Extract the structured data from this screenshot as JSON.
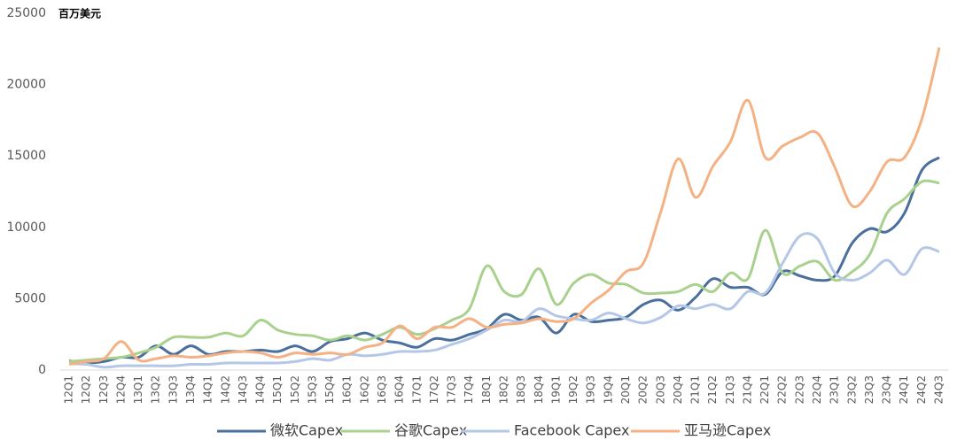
{
  "chart_data": {
    "type": "line",
    "y_unit_label": "百万美元",
    "categories": [
      "12Q1",
      "12Q2",
      "12Q3",
      "12Q4",
      "13Q1",
      "13Q2",
      "13Q3",
      "13Q4",
      "14Q1",
      "14Q2",
      "14Q3",
      "14Q4",
      "15Q1",
      "15Q2",
      "15Q3",
      "15Q4",
      "16Q1",
      "16Q2",
      "16Q3",
      "16Q4",
      "17Q1",
      "17Q2",
      "17Q3",
      "17Q4",
      "18Q1",
      "18Q2",
      "18Q3",
      "18Q4",
      "19Q1",
      "19Q2",
      "19Q3",
      "19Q4",
      "20Q1",
      "20Q2",
      "20Q3",
      "20Q4",
      "21Q1",
      "21Q2",
      "21Q3",
      "21Q4",
      "22Q1",
      "22Q2",
      "22Q3",
      "22Q4",
      "23Q1",
      "23Q2",
      "23Q3",
      "23Q4",
      "24Q1",
      "24Q2",
      "24Q3"
    ],
    "series": [
      {
        "name": "微软Capex",
        "color": "#4a6f9c",
        "values": [
          650,
          500,
          600,
          900,
          900,
          1700,
          1100,
          1700,
          1100,
          1300,
          1300,
          1400,
          1300,
          1700,
          1300,
          2000,
          2200,
          2600,
          2100,
          1900,
          1600,
          2200,
          2100,
          2500,
          2900,
          3900,
          3500,
          3700,
          2600,
          3900,
          3400,
          3500,
          3700,
          4600,
          4900,
          4200,
          5100,
          6400,
          5800,
          5800,
          5300,
          6900,
          6600,
          6300,
          6600,
          8900,
          9900,
          9700,
          11000,
          14000,
          14900
        ]
      },
      {
        "name": "谷歌Capex",
        "color": "#a9d18e",
        "values": [
          600,
          700,
          800,
          900,
          1200,
          1600,
          2300,
          2300,
          2300,
          2600,
          2400,
          3500,
          2800,
          2500,
          2400,
          2100,
          2400,
          2100,
          2500,
          3000,
          2500,
          2900,
          3500,
          4300,
          7300,
          5500,
          5300,
          7100,
          4600,
          6100,
          6700,
          6100,
          6000,
          5400,
          5400,
          5500,
          6000,
          5500,
          6800,
          6400,
          9800,
          6800,
          7300,
          7600,
          6300,
          6900,
          8100,
          11000,
          12000,
          13200,
          13100
        ]
      },
      {
        "name": "Facebook Capex",
        "color": "#b4c7e7",
        "values": [
          450,
          400,
          200,
          300,
          300,
          300,
          300,
          400,
          400,
          500,
          500,
          500,
          500,
          600,
          800,
          700,
          1100,
          1000,
          1100,
          1300,
          1300,
          1400,
          1800,
          2200,
          2800,
          3500,
          3400,
          4300,
          3800,
          3600,
          3500,
          4000,
          3600,
          3300,
          3700,
          4500,
          4300,
          4600,
          4300,
          5500,
          5400,
          7500,
          9400,
          9200,
          6800,
          6300,
          6800,
          7700,
          6700,
          8500,
          8300
        ]
      },
      {
        "name": "亚马逊Capex",
        "color": "#f4b183",
        "values": [
          400,
          600,
          800,
          2000,
          700,
          800,
          1000,
          900,
          1000,
          1200,
          1300,
          1200,
          900,
          1200,
          1100,
          1200,
          1100,
          1600,
          1900,
          3100,
          2200,
          3000,
          3000,
          3600,
          3000,
          3200,
          3300,
          3600,
          3400,
          3600,
          4700,
          5600,
          6900,
          7500,
          11100,
          14800,
          12100,
          14300,
          16000,
          18900,
          14900,
          15700,
          16300,
          16600,
          14200,
          11500,
          12500,
          14600,
          14900,
          17600,
          22600
        ]
      }
    ],
    "ylim": [
      0,
      25000
    ],
    "yticks": [
      0,
      5000,
      10000,
      15000,
      20000,
      25000
    ],
    "grid": false,
    "legend": "bottom"
  }
}
